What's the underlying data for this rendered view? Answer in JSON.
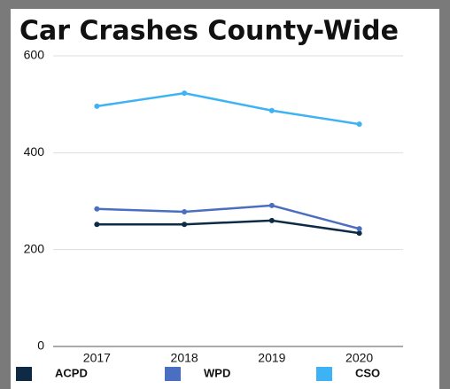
{
  "chart_data": {
    "type": "line",
    "title": "Car Crashes County-Wide",
    "categories": [
      "2017",
      "2018",
      "2019",
      "2020"
    ],
    "series": [
      {
        "name": "ACPD",
        "color": "#0d2b45",
        "values": [
          252,
          252,
          260,
          234
        ]
      },
      {
        "name": "WPD",
        "color": "#4a6fc0",
        "values": [
          284,
          278,
          291,
          243
        ]
      },
      {
        "name": "CSO",
        "color": "#3db3f5",
        "values": [
          496,
          523,
          487,
          459
        ]
      }
    ],
    "ylim": [
      0,
      600
    ],
    "yticks": [
      0,
      200,
      400,
      600
    ],
    "grid": true,
    "legend": "bottom"
  }
}
